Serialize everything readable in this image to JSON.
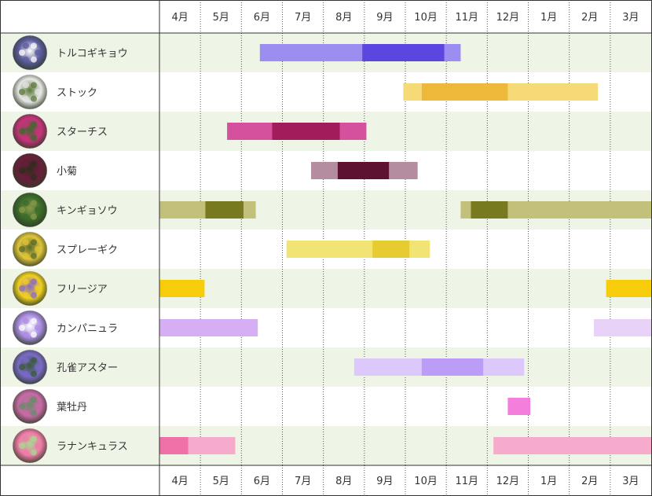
{
  "chart_data": {
    "type": "gantt",
    "months": [
      "4月",
      "5月",
      "6月",
      "7月",
      "8月",
      "9月",
      "10月",
      "11月",
      "12月",
      "1月",
      "2月",
      "3月"
    ],
    "colors": {
      "row_alt": "#eef4e6",
      "row_plain": "#ffffff",
      "grid": "#555555",
      "border": "#333333"
    },
    "flowers": [
      {
        "name": "トルコギキョウ",
        "icon": "eustoma-photo",
        "photo": [
          "#5a5a9a",
          "#ffffff"
        ],
        "light": {
          "start": 2.45,
          "end": 7.35,
          "color": "#9b8ef0"
        },
        "dark": {
          "start": 4.95,
          "end": 6.95,
          "color": "#5b46e0"
        }
      },
      {
        "name": "ストック",
        "icon": "stock-photo",
        "photo": [
          "#e6e6e6",
          "#5c7a3a"
        ],
        "light": {
          "start": 5.95,
          "end": 10.7,
          "color": "#f6da78"
        },
        "dark": {
          "start": 6.4,
          "end": 8.5,
          "color": "#eeb83a"
        }
      },
      {
        "name": "スターチス",
        "icon": "statice-photo",
        "photo": [
          "#c8327c",
          "#3c6a2c"
        ],
        "light": {
          "start": 1.65,
          "end": 5.05,
          "color": "#d6519d"
        },
        "dark": {
          "start": 2.75,
          "end": 4.4,
          "color": "#a21c5c"
        }
      },
      {
        "name": "小菊",
        "icon": "small-chrysanthemum-photo",
        "photo": [
          "#6a1e3a",
          "#2e2e1e"
        ],
        "light": {
          "start": 3.7,
          "end": 6.3,
          "color": "#b48ea0"
        },
        "dark": {
          "start": 4.35,
          "end": 5.6,
          "color": "#5e1232"
        }
      },
      {
        "name": "キンギョソウ",
        "icon": "snapdragon-photo",
        "photo": [
          "#3a6a2a",
          "#8a9a4a"
        ],
        "bars": [
          {
            "start": 0,
            "end": 2.35,
            "color": "#c2c07a"
          },
          {
            "start": 1.12,
            "end": 2.05,
            "color": "#777a1e"
          },
          {
            "start": 7.35,
            "end": 12,
            "color": "#c2c07a"
          },
          {
            "start": 7.6,
            "end": 8.5,
            "color": "#777a1e"
          }
        ]
      },
      {
        "name": "スプレーギク",
        "icon": "spray-mum-photo",
        "photo": [
          "#e0c43a",
          "#5a6a2a"
        ],
        "light": {
          "start": 3.1,
          "end": 6.6,
          "color": "#f2e474"
        },
        "dark": {
          "start": 5.2,
          "end": 6.1,
          "color": "#e6cc30"
        }
      },
      {
        "name": "フリージア",
        "icon": "freesia-photo",
        "photo": [
          "#f0d020",
          "#8a6ac0"
        ],
        "bars": [
          {
            "start": 0,
            "end": 1.1,
            "color": "#f7cc0a"
          },
          {
            "start": 10.9,
            "end": 12,
            "color": "#f7cc0a"
          }
        ]
      },
      {
        "name": "カンパニュラ",
        "icon": "campanula-photo",
        "photo": [
          "#a88ae0",
          "#ffffff"
        ],
        "bars": [
          {
            "start": 0,
            "end": 2.4,
            "color": "#d6aef4"
          },
          {
            "start": 10.6,
            "end": 12,
            "color": "#e8d2f8"
          }
        ]
      },
      {
        "name": "孔雀アスター",
        "icon": "peacock-aster-photo",
        "photo": [
          "#7a6ac8",
          "#3a5a3a"
        ],
        "light": {
          "start": 4.75,
          "end": 8.9,
          "color": "#dcc8fa"
        },
        "dark": {
          "start": 6.4,
          "end": 7.9,
          "color": "#bb9cf6"
        }
      },
      {
        "name": "葉牡丹",
        "icon": "ornamental-kale-photo",
        "photo": [
          "#c86aa8",
          "#6a8a6a"
        ],
        "bars": [
          {
            "start": 8.5,
            "end": 9.05,
            "color": "#f47edc"
          }
        ]
      },
      {
        "name": "ラナンキュラス",
        "icon": "ranunculus-photo",
        "photo": [
          "#f07aa8",
          "#a8d890"
        ],
        "bars": [
          {
            "start": 0,
            "end": 1.85,
            "color": "#f6aacc"
          },
          {
            "start": 0,
            "end": 0.7,
            "color": "#ee72a8"
          },
          {
            "start": 8.15,
            "end": 12,
            "color": "#f6aacc"
          }
        ]
      }
    ]
  }
}
